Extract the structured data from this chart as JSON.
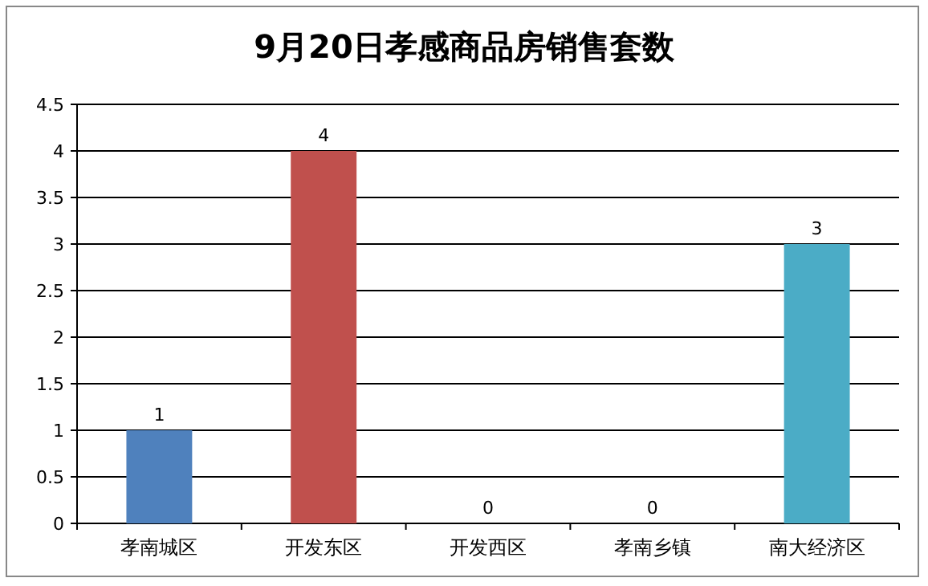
{
  "chart_data": {
    "type": "bar",
    "title": "9月20日孝感商品房销售套数",
    "categories": [
      "孝南城区",
      "开发东区",
      "开发西区",
      "孝南乡镇",
      "南大经济区"
    ],
    "values": [
      1,
      4,
      0,
      0,
      3
    ],
    "colors": [
      "#4f81bd",
      "#c0504d",
      "#9bbb59",
      "#8064a2",
      "#4bacc6"
    ],
    "ylim": [
      0,
      4.5
    ],
    "yticks": [
      0,
      0.5,
      1,
      1.5,
      2,
      2.5,
      3,
      3.5,
      4,
      4.5
    ],
    "grid": "y",
    "data_labels": true
  }
}
